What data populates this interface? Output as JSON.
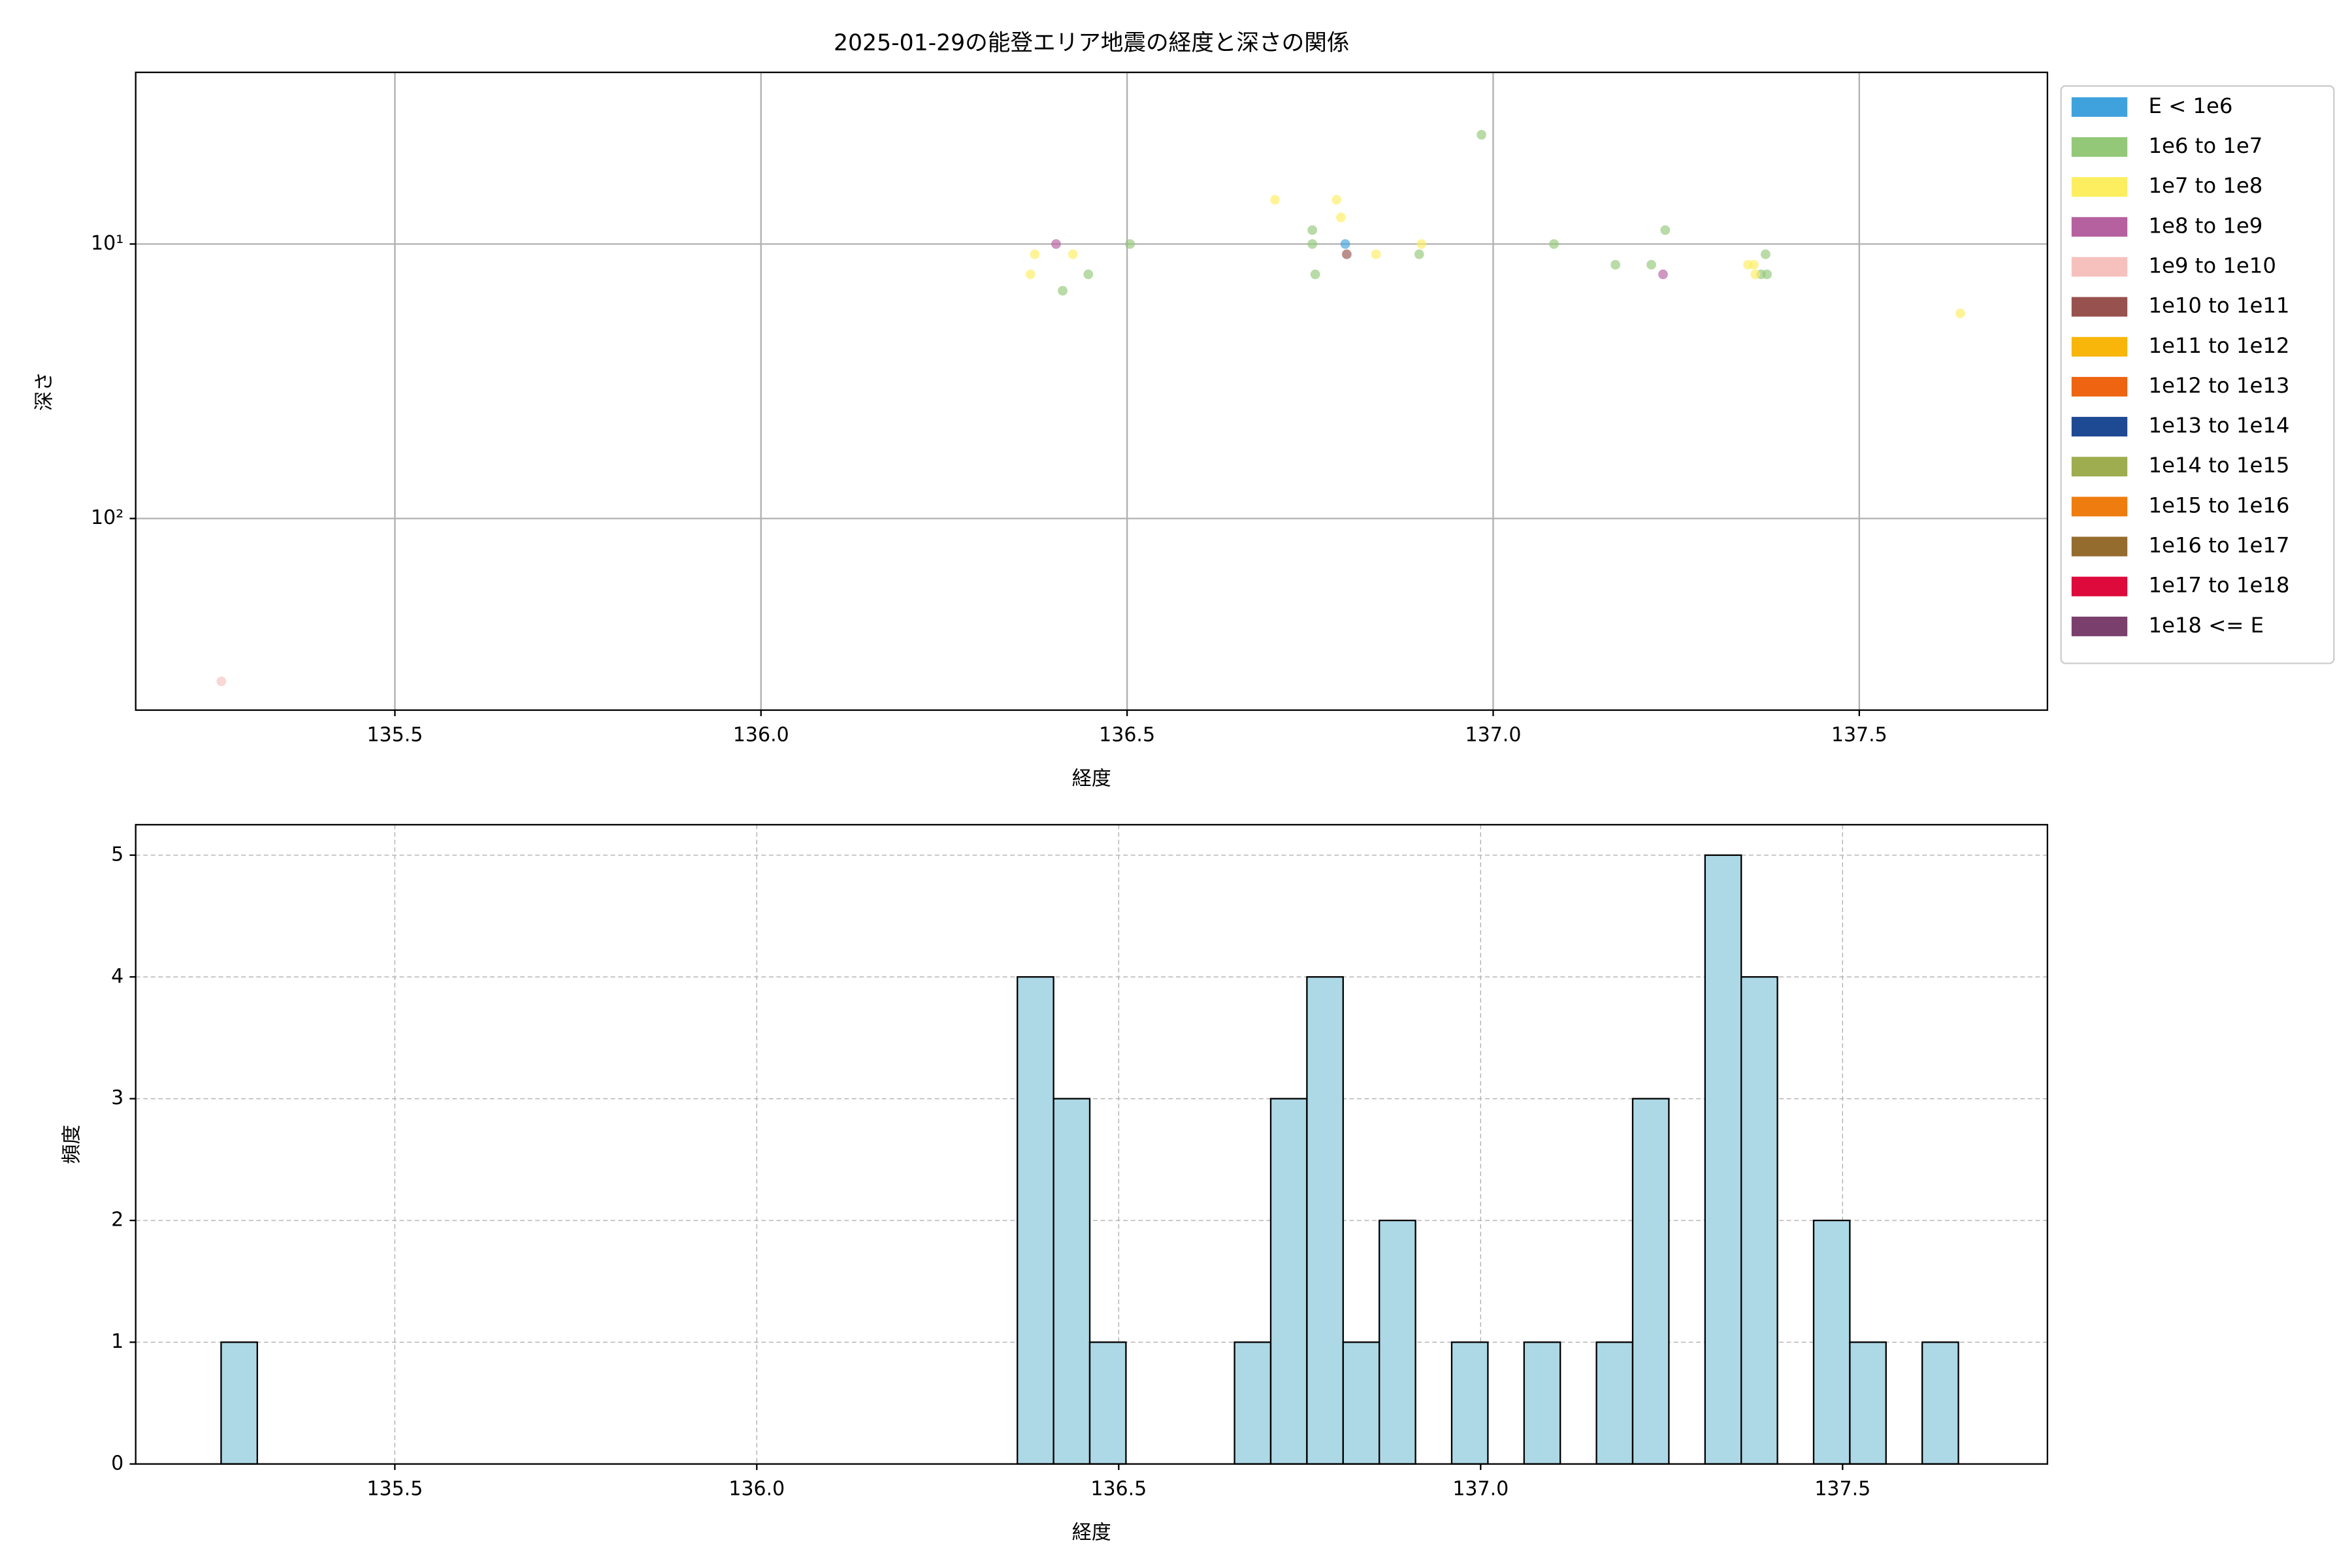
{
  "chart_data": [
    {
      "type": "scatter",
      "title": "2025-01-29の能登エリア地震の経度と深さの関係",
      "x_label": "経度",
      "y_label": "深さ",
      "xlim": [
        135.146,
        137.757
      ],
      "ylim": [
        2.37,
        499
      ],
      "yscale": "log",
      "y_inverted": true,
      "grid": true,
      "legend": "outside right",
      "xticks": [
        135.5,
        {
          "value": 136,
          "label": "136.0"
        },
        136.5,
        {
          "value": 137,
          "label": "137.0"
        },
        137.5
      ],
      "yticks": [
        {
          "value": 10,
          "label": "10¹"
        },
        {
          "value": 100,
          "label": "10²"
        }
      ],
      "series": [
        {
          "name": "E < 1e6",
          "color": "#40a2dd",
          "x": [
            136.798
          ],
          "values": [
            10
          ]
        },
        {
          "name": "1e6 to 1e7",
          "color": "#93c878",
          "x": [
            136.412,
            136.447,
            136.504,
            136.753,
            136.753,
            136.757,
            136.899,
            136.984,
            137.083,
            137.167,
            137.216,
            137.235,
            137.372,
            137.366,
            137.374
          ],
          "values": [
            14.8,
            12.9,
            10,
            8.9,
            10,
            12.9,
            10.9,
            4.0,
            10,
            11.9,
            11.9,
            8.9,
            10.9,
            12.9,
            12.9
          ]
        },
        {
          "name": "1e7 to 1e8",
          "color": "#fdee60",
          "x": [
            136.368,
            136.374,
            136.426,
            136.702,
            136.786,
            136.792,
            136.84,
            136.902,
            137.348,
            137.358,
            137.356,
            137.638
          ],
          "values": [
            12.9,
            10.9,
            10.9,
            6.9,
            6.9,
            8.0,
            10.9,
            10,
            11.9,
            12.9,
            11.9,
            17.9
          ]
        },
        {
          "name": "1e8 to 1e9",
          "color": "#b5609f",
          "x": [
            136.403,
            137.232
          ],
          "values": [
            10,
            12.9
          ]
        },
        {
          "name": "1e9 to 1e10",
          "color": "#f6c1bd",
          "x": [
            135.263
          ],
          "values": [
            392
          ]
        },
        {
          "name": "1e10 to 1e11",
          "color": "#97514e",
          "x": [
            136.8
          ],
          "values": [
            10.9
          ]
        },
        {
          "name": "1e11 to 1e12",
          "color": "#f8b60a",
          "x": [],
          "values": []
        },
        {
          "name": "1e12 to 1e13",
          "color": "#ee6411",
          "x": [],
          "values": []
        },
        {
          "name": "1e13 to 1e14",
          "color": "#1e4a93",
          "x": [],
          "values": []
        },
        {
          "name": "1e14 to 1e15",
          "color": "#9ead4f",
          "x": [],
          "values": []
        },
        {
          "name": "1e15 to 1e16",
          "color": "#ef7c0f",
          "x": [],
          "values": []
        },
        {
          "name": "1e16 to 1e17",
          "color": "#946c2d",
          "x": [],
          "values": []
        },
        {
          "name": "1e17 to 1e18",
          "color": "#dd0a3b",
          "x": [],
          "values": []
        },
        {
          "name": "1e18 <= E",
          "color": "#7b3f6d",
          "x": [],
          "values": []
        }
      ]
    },
    {
      "type": "histogram",
      "x_label": "経度",
      "y_label": "頻度",
      "color": "#add8e6",
      "grid": true,
      "xlim": [
        135.142,
        137.783
      ],
      "ylim": [
        0,
        5.25
      ],
      "xticks": [
        135.5,
        {
          "value": 136,
          "label": "136.0"
        },
        136.5,
        {
          "value": 137,
          "label": "137.0"
        },
        137.5
      ],
      "yticks": [
        0,
        1,
        2,
        3,
        4,
        5
      ],
      "bins": [
        135.26,
        135.31,
        135.36,
        135.41,
        135.46,
        135.51,
        135.56,
        135.61,
        135.66,
        135.71,
        135.76,
        135.81,
        135.86,
        135.91,
        135.96,
        136.01,
        136.06,
        136.11,
        136.16,
        136.21,
        136.26,
        136.31,
        136.36,
        136.41,
        136.46,
        136.51,
        136.56,
        136.61,
        136.66,
        136.71,
        136.76,
        136.81,
        136.86,
        136.91,
        136.96,
        137.01,
        137.06,
        137.11,
        137.16,
        137.21,
        137.26,
        137.31,
        137.36,
        137.41,
        137.46,
        137.51,
        137.56,
        137.61,
        137.66
      ],
      "values": [
        1,
        0,
        0,
        0,
        0,
        0,
        0,
        0,
        0,
        0,
        0,
        0,
        0,
        0,
        0,
        0,
        0,
        0,
        0,
        0,
        0,
        0,
        4,
        3,
        1,
        0,
        0,
        0,
        1,
        3,
        4,
        1,
        2,
        0,
        1,
        0,
        1,
        0,
        1,
        3,
        0,
        5,
        4,
        0,
        2,
        1,
        0,
        1
      ]
    }
  ]
}
